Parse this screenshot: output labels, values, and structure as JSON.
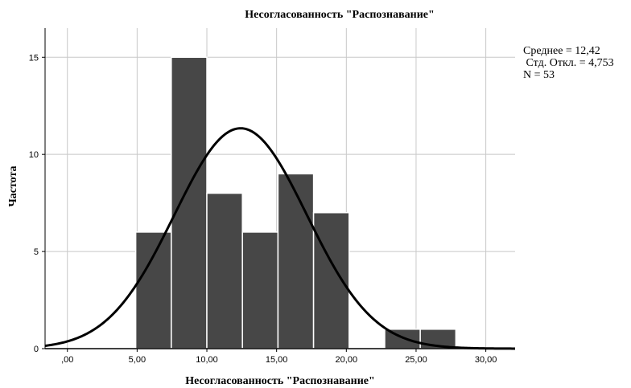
{
  "chart_data": {
    "type": "bar",
    "title": "Несогласованность \"Распознавание\"",
    "xlabel": "Несогласованность \"Распознавание\"",
    "ylabel": "Частота",
    "x_ticks": [
      ",00",
      "5,00",
      "10,00",
      "15,00",
      "20,00",
      "25,00",
      "30,00"
    ],
    "y_ticks": [
      "0",
      "5",
      "10",
      "15"
    ],
    "xlim": [
      -1.6,
      32.1
    ],
    "ylim": [
      0,
      16.5
    ],
    "grid": true,
    "bins": [
      {
        "start": 4.9,
        "end": 7.45,
        "count": 6
      },
      {
        "start": 7.45,
        "end": 10.0,
        "count": 15
      },
      {
        "start": 10.0,
        "end": 12.55,
        "count": 8
      },
      {
        "start": 12.55,
        "end": 15.1,
        "count": 6
      },
      {
        "start": 15.1,
        "end": 17.65,
        "count": 9
      },
      {
        "start": 17.65,
        "end": 20.2,
        "count": 7
      },
      {
        "start": 22.75,
        "end": 25.3,
        "count": 1
      },
      {
        "start": 25.3,
        "end": 27.85,
        "count": 1
      }
    ],
    "normal_curve": {
      "mean": 12.42,
      "sd": 4.753,
      "n": 53,
      "bin_width": 2.55
    },
    "bar_color": "#474747",
    "stats": {
      "mean_line": "Среднее = 12,42",
      "sd_line": " Стд. Откл. = 4,753",
      "n_line": "N = 53"
    }
  }
}
